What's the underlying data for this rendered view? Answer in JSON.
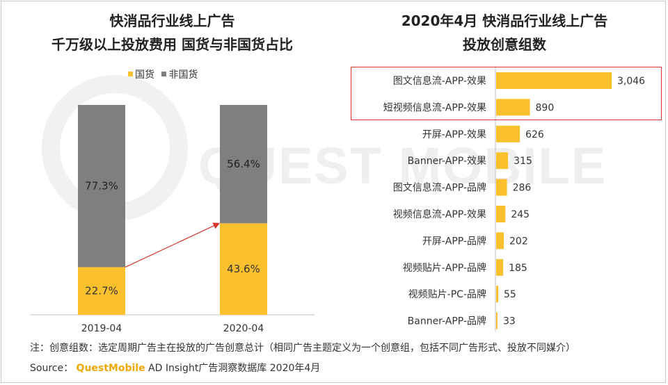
{
  "left_chart": {
    "title_line1": "快消品行业线上广告",
    "title_line2": "千万级以上投放费用 国货与非国货占比",
    "legend": [
      {
        "label": "国货",
        "color": "#fbc02d"
      },
      {
        "label": "非国货",
        "color": "#7f7f7f"
      }
    ]
  },
  "right_chart": {
    "title_line1": "2020年4月 快消品行业线上广告",
    "title_line2": "投放创意组数"
  },
  "watermark": "QUEST MOBILE",
  "note": "注：创意组数：选定周期广告主在投放的广告创意总计（相同广告主题定义为一个创意组，包括不同广告形式、投放不同媒介）",
  "source": {
    "prefix": "Source： ",
    "brand": "QuestMobile",
    "rest": " AD Insight广告洞察数据库 2020年4月"
  },
  "colors": {
    "domestic": "#fbc02d",
    "foreign": "#7f7f7f",
    "bar": "#fbc02d",
    "highlight": "#d9342b",
    "arrow": "#d9342b"
  },
  "chart_data": [
    {
      "type": "bar",
      "stacked": true,
      "percent": true,
      "title": "快消品行业线上广告 千万级以上投放费用 国货与非国货占比",
      "categories": [
        "2019-04",
        "2020-04"
      ],
      "series": [
        {
          "name": "国货",
          "values": [
            22.7,
            43.6
          ],
          "labels": [
            "22.7%",
            "43.6%"
          ]
        },
        {
          "name": "非国货",
          "values": [
            77.3,
            56.4
          ],
          "labels": [
            "77.3%",
            "56.4%"
          ]
        }
      ],
      "ylim": [
        0,
        100
      ],
      "annotation": "arrow from 2019-04 国货 to 2020-04 国货"
    },
    {
      "type": "bar",
      "orientation": "horizontal",
      "title": "2020年4月 快消品行业线上广告 投放创意组数",
      "categories": [
        "图文信息流-APP-效果",
        "短视频信息流-APP-效果",
        "开屏-APP-效果",
        "Banner-APP-效果",
        "图文信息流-APP-品牌",
        "视频信息流-APP-效果",
        "开屏-APP-品牌",
        "视频贴片-APP-品牌",
        "视频贴片-PC-品牌",
        "Banner-APP-品牌"
      ],
      "values": [
        3046,
        890,
        626,
        315,
        286,
        245,
        202,
        185,
        55,
        33
      ],
      "labels": [
        "3,046",
        "890",
        "626",
        "315",
        "286",
        "245",
        "202",
        "185",
        "55",
        "33"
      ],
      "highlighted": [
        "图文信息流-APP-效果",
        "短视频信息流-APP-效果"
      ],
      "xlim": [
        0,
        3046
      ]
    }
  ]
}
